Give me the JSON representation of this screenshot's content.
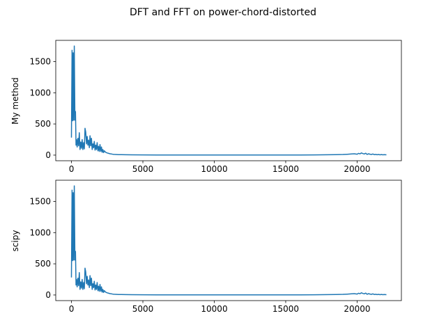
{
  "figure": {
    "suptitle": "DFT and FFT on power-chord-distorted",
    "line_color": "#1f77b4"
  },
  "chart_data": [
    {
      "type": "line",
      "title": "",
      "xlabel": "",
      "ylabel": "My method",
      "xlim": [
        -1100,
        23100
      ],
      "ylim": [
        -90,
        1840
      ],
      "xticks": [
        0,
        5000,
        10000,
        15000,
        20000
      ],
      "xtick_labels": [
        "0",
        "5000",
        "10000",
        "15000",
        "20000"
      ],
      "yticks": [
        0,
        500,
        1000,
        1500
      ],
      "ytick_labels": [
        "0",
        "500",
        "1000",
        "1500"
      ],
      "grid": false,
      "series": [
        {
          "x": [
            0,
            40,
            80,
            120,
            160,
            200,
            240,
            280,
            320,
            360,
            400,
            450,
            500,
            550,
            600,
            650,
            700,
            750,
            800,
            850,
            900,
            950,
            1000,
            1050,
            1100,
            1150,
            1200,
            1250,
            1300,
            1350,
            1400,
            1450,
            1500,
            1550,
            1600,
            1650,
            1700,
            1750,
            1800,
            1850,
            1900,
            1950,
            2000,
            2050,
            2100,
            2150,
            2200,
            2250,
            2300,
            2400,
            2500,
            2600,
            2700,
            2800,
            2900,
            3000,
            3100,
            3200,
            3300,
            3500,
            3800,
            4200,
            5000,
            6000,
            8000,
            10000,
            12000,
            14000,
            16000,
            17000,
            18000,
            18500,
            19000,
            19300,
            19600,
            19800,
            20000,
            20100,
            20200,
            20300,
            20400,
            20500,
            20600,
            20700,
            20800,
            20900,
            21000,
            21100,
            21200,
            21300,
            21400,
            21500,
            21600,
            21700,
            21800,
            21900,
            22050
          ],
          "y": [
            280,
            1680,
            550,
            1640,
            560,
            1750,
            560,
            700,
            160,
            250,
            130,
            270,
            150,
            360,
            90,
            210,
            110,
            250,
            90,
            200,
            100,
            430,
            370,
            180,
            300,
            160,
            240,
            120,
            310,
            150,
            270,
            90,
            180,
            120,
            220,
            80,
            160,
            90,
            200,
            70,
            140,
            60,
            170,
            60,
            130,
            45,
            90,
            40,
            70,
            45,
            35,
            28,
            22,
            18,
            14,
            12,
            10,
            9,
            8,
            7,
            6,
            5,
            4,
            3,
            3,
            3,
            3,
            3,
            3,
            4,
            6,
            8,
            10,
            14,
            18,
            22,
            15,
            28,
            20,
            35,
            25,
            18,
            30,
            12,
            22,
            15,
            10,
            18,
            8,
            12,
            6,
            10,
            5,
            9,
            5,
            7,
            5
          ]
        }
      ]
    },
    {
      "type": "line",
      "title": "",
      "xlabel": "",
      "ylabel": "scipy",
      "xlim": [
        -1100,
        23100
      ],
      "ylim": [
        -90,
        1840
      ],
      "xticks": [
        0,
        5000,
        10000,
        15000,
        20000
      ],
      "xtick_labels": [
        "0",
        "5000",
        "10000",
        "15000",
        "20000"
      ],
      "yticks": [
        0,
        500,
        1000,
        1500
      ],
      "ytick_labels": [
        "0",
        "500",
        "1000",
        "1500"
      ],
      "grid": false,
      "series": [
        {
          "x": [
            0,
            40,
            80,
            120,
            160,
            200,
            240,
            280,
            320,
            360,
            400,
            450,
            500,
            550,
            600,
            650,
            700,
            750,
            800,
            850,
            900,
            950,
            1000,
            1050,
            1100,
            1150,
            1200,
            1250,
            1300,
            1350,
            1400,
            1450,
            1500,
            1550,
            1600,
            1650,
            1700,
            1750,
            1800,
            1850,
            1900,
            1950,
            2000,
            2050,
            2100,
            2150,
            2200,
            2250,
            2300,
            2400,
            2500,
            2600,
            2700,
            2800,
            2900,
            3000,
            3100,
            3200,
            3300,
            3500,
            3800,
            4200,
            5000,
            6000,
            8000,
            10000,
            12000,
            14000,
            16000,
            17000,
            18000,
            18500,
            19000,
            19300,
            19600,
            19800,
            20000,
            20100,
            20200,
            20300,
            20400,
            20500,
            20600,
            20700,
            20800,
            20900,
            21000,
            21100,
            21200,
            21300,
            21400,
            21500,
            21600,
            21700,
            21800,
            21900,
            22050
          ],
          "y": [
            280,
            1680,
            550,
            1640,
            560,
            1750,
            560,
            700,
            160,
            250,
            130,
            270,
            150,
            360,
            90,
            210,
            110,
            250,
            90,
            200,
            100,
            430,
            370,
            180,
            300,
            160,
            240,
            120,
            310,
            150,
            270,
            90,
            180,
            120,
            220,
            80,
            160,
            90,
            200,
            70,
            140,
            60,
            170,
            60,
            130,
            45,
            90,
            40,
            70,
            45,
            35,
            28,
            22,
            18,
            14,
            12,
            10,
            9,
            8,
            7,
            6,
            5,
            4,
            3,
            3,
            3,
            3,
            3,
            3,
            4,
            6,
            8,
            10,
            14,
            18,
            22,
            15,
            28,
            20,
            35,
            25,
            18,
            30,
            12,
            22,
            15,
            10,
            18,
            8,
            12,
            6,
            10,
            5,
            9,
            5,
            7,
            5
          ]
        }
      ]
    }
  ]
}
